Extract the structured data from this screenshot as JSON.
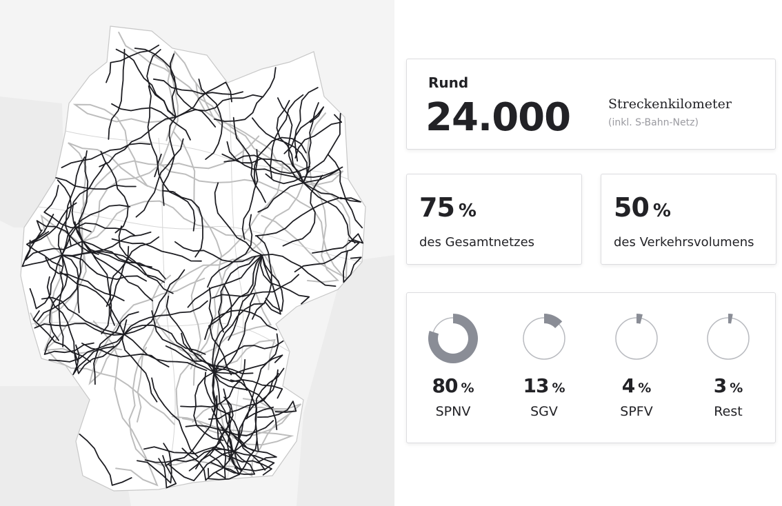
{
  "map": {
    "colors": {
      "background": "#f4f4f4",
      "land": "#ffffff",
      "region_lines": "#bbbbbb",
      "rail_main": "#1d1d22",
      "rail_other": "#bdbdbd"
    }
  },
  "summary": {
    "prefix": "Rund",
    "value": "24.000",
    "unit_label": "Streckenkilometer",
    "unit_note": "(inkl. S-Bahn-Netz)"
  },
  "stats": [
    {
      "value": "75",
      "sign": "%",
      "label": "des Gesamtnetzes"
    },
    {
      "value": "50",
      "sign": "%",
      "label": "des Verkehrsvolumens"
    }
  ],
  "breakdown": [
    {
      "value": "80",
      "sign": "%",
      "label": "SPNV",
      "fraction": 0.8
    },
    {
      "value": "13",
      "sign": "%",
      "label": "SGV",
      "fraction": 0.13
    },
    {
      "value": "4",
      "sign": "%",
      "label": "SPFV",
      "fraction": 0.04
    },
    {
      "value": "3",
      "sign": "%",
      "label": "Rest",
      "fraction": 0.03
    }
  ],
  "colors": {
    "donut_fill": "#8a8d96",
    "donut_ring": "#b8babf",
    "text": "#222226",
    "muted": "#9a9aa0"
  }
}
